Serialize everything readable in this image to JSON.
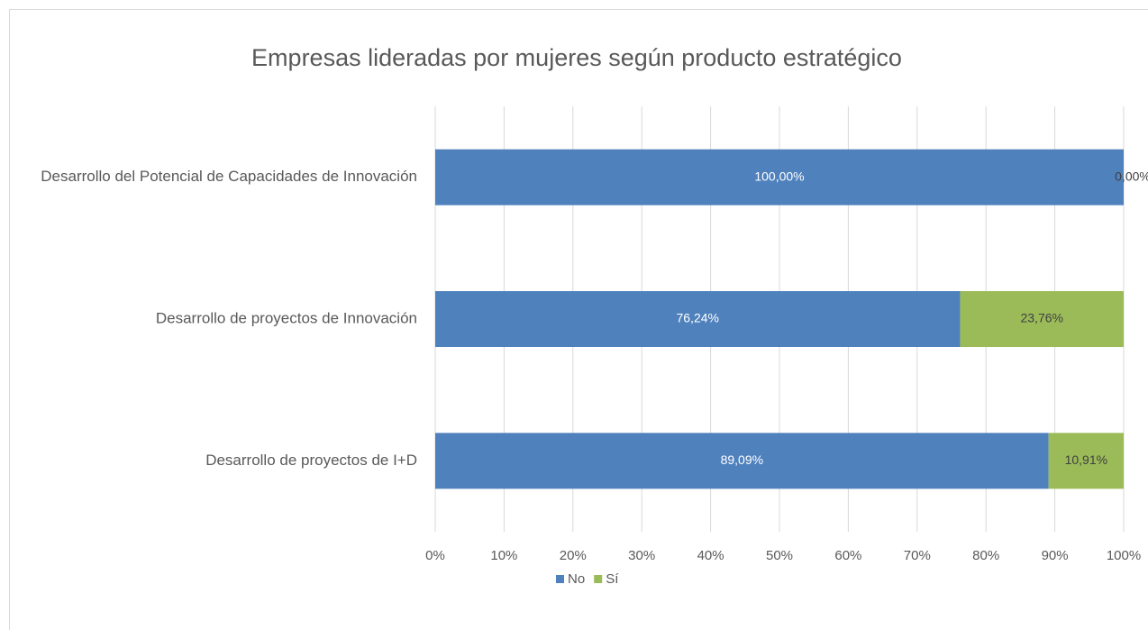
{
  "chart_data": {
    "type": "stacked_barh",
    "title": "Empresas lideradas por mujeres según producto estratégico",
    "categories": [
      "Desarrollo del Potencial de Capacidades de Innovación",
      "Desarrollo de proyectos de Innovación",
      "Desarrollo de proyectos de I+D"
    ],
    "series": [
      {
        "name": "No",
        "color": "#4f81bd",
        "values": [
          100,
          76.24,
          89.09
        ],
        "value_labels": [
          "100,00%",
          "76,24%",
          "89,09%"
        ]
      },
      {
        "name": "Sí",
        "color": "#9bbb59",
        "values": [
          0,
          23.76,
          10.91
        ],
        "value_labels": [
          "0,00%",
          "23,76%",
          "10,91%"
        ]
      }
    ],
    "xlim": [
      0,
      100
    ],
    "xticks": [
      {
        "value": 0,
        "label": "0%"
      },
      {
        "value": 10,
        "label": "10%"
      },
      {
        "value": 20,
        "label": "20%"
      },
      {
        "value": 30,
        "label": "30%"
      },
      {
        "value": 40,
        "label": "40%"
      },
      {
        "value": 50,
        "label": "50%"
      },
      {
        "value": 60,
        "label": "60%"
      },
      {
        "value": 70,
        "label": "70%"
      },
      {
        "value": 80,
        "label": "80%"
      },
      {
        "value": 90,
        "label": "90%"
      },
      {
        "value": 100,
        "label": "100%"
      }
    ],
    "grid": true,
    "legend": "bottom"
  }
}
